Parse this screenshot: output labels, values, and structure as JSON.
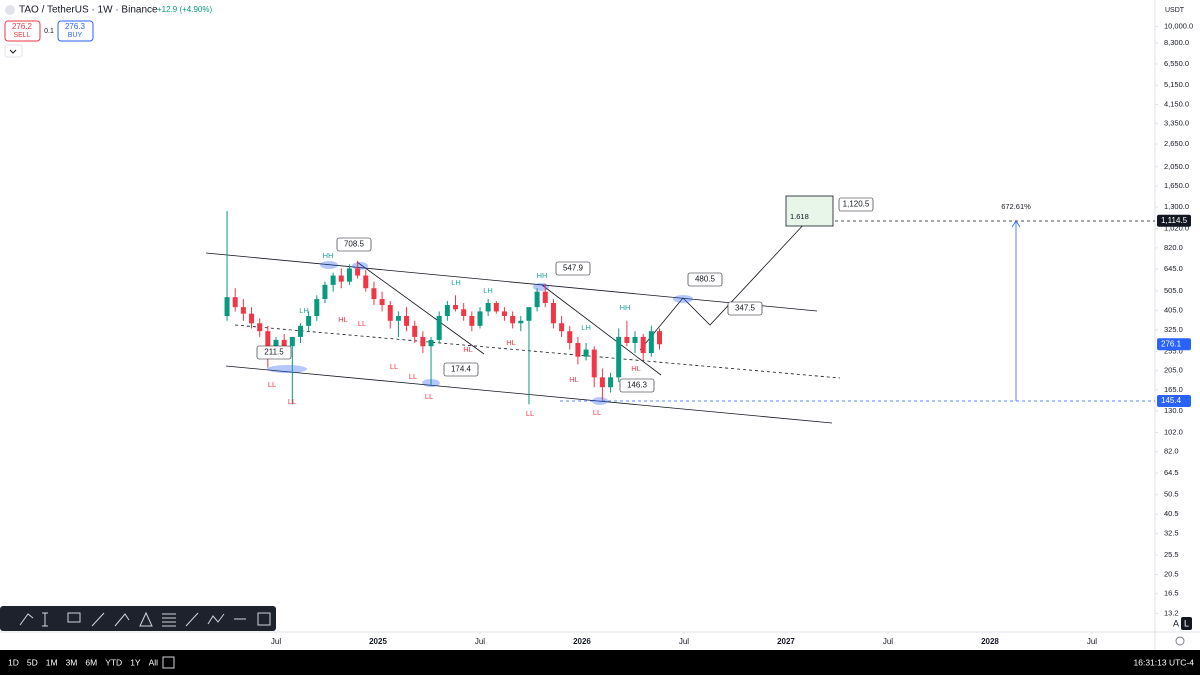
{
  "header": {
    "symbol": "TAO / TetherUS · 1W · Binance",
    "change": "+12.9 (+4.90%)",
    "sell_price": 276.2,
    "sell": "SELL",
    "spread": 0.1,
    "buy_price": 276.3,
    "buy": "BUY",
    "currency": "USDT"
  },
  "chart_data": {
    "type": "candlestick",
    "log_scale": true,
    "up_color": "#089981",
    "down_color": "#f23645",
    "xlim": [
      2023.147,
      2028.809
    ],
    "ylim": [
      10.7,
      13490
    ],
    "xticks": [
      {
        "value": 2024.5,
        "label": "Jul"
      },
      2025,
      {
        "value": 2025.5,
        "label": "Jul"
      },
      2026,
      {
        "value": 2026.5,
        "label": "Jul"
      },
      2027,
      {
        "value": 2027.5,
        "label": "Jul"
      },
      2028,
      {
        "value": 2028.5,
        "label": "Jul"
      }
    ],
    "yticks": [
      {
        "value": 10000,
        "label": "10,000.0"
      },
      {
        "value": 8300,
        "label": "8,300.0"
      },
      {
        "value": 6550,
        "label": "6,550.0"
      },
      {
        "value": 5150,
        "label": "5,150.0"
      },
      {
        "value": 4150,
        "label": "4,150.0"
      },
      {
        "value": 3350,
        "label": "3,350.0"
      },
      {
        "value": 2650,
        "label": "2,650.0"
      },
      {
        "value": 2050,
        "label": "2,050.0"
      },
      {
        "value": 1650,
        "label": "1,650.0"
      },
      {
        "value": 1300,
        "label": "1,300.0"
      },
      {
        "value": 1020,
        "label": "1,020.0"
      },
      {
        "value": 820,
        "label": "820.0"
      },
      {
        "value": 645,
        "label": "645.0"
      },
      {
        "value": 505,
        "label": "505.0"
      },
      {
        "value": 405,
        "label": "405.0"
      },
      {
        "value": 325,
        "label": "325.0"
      },
      {
        "value": 255,
        "label": "255.0"
      },
      {
        "value": 205,
        "label": "205.0"
      },
      {
        "value": 165,
        "label": "165.0"
      },
      {
        "value": 130,
        "label": "130.0"
      },
      {
        "value": 102,
        "label": "102.0"
      },
      {
        "value": 82,
        "label": "82.0"
      },
      64.5,
      50.5,
      40.5,
      32.5,
      25.5,
      20.5,
      16.5,
      13.2
    ],
    "x": [
      2024.26,
      2024.3,
      2024.34,
      2024.38,
      2024.42,
      2024.46,
      2024.5,
      2024.54,
      2024.58,
      2024.62,
      2024.66,
      2024.7,
      2024.74,
      2024.78,
      2024.82,
      2024.86,
      2024.9,
      2024.94,
      2024.98,
      2025.02,
      2025.06,
      2025.1,
      2025.14,
      2025.18,
      2025.22,
      2025.26,
      2025.3,
      2025.34,
      2025.38,
      2025.42,
      2025.46,
      2025.5,
      2025.54,
      2025.58,
      2025.62,
      2025.66,
      2025.7,
      2025.74,
      2025.78,
      2025.82,
      2025.86,
      2025.9,
      2025.94,
      2025.98,
      2026.02,
      2026.06,
      2026.1,
      2026.14,
      2026.18,
      2026.22,
      2026.26,
      2026.3,
      2026.34,
      2026.38
    ],
    "open": [
      380,
      470,
      420,
      390,
      350,
      320,
      260,
      290,
      270,
      300,
      340,
      380,
      460,
      540,
      600,
      560,
      650,
      600,
      520,
      460,
      430,
      360,
      380,
      340,
      300,
      270,
      290,
      380,
      430,
      410,
      380,
      340,
      400,
      440,
      400,
      380,
      350,
      360,
      420,
      500,
      440,
      350,
      320,
      280,
      240,
      260,
      190,
      170,
      190,
      300,
      280,
      300,
      250,
      320
    ],
    "high": [
      1245,
      520,
      460,
      420,
      370,
      340,
      300,
      310,
      290,
      350,
      400,
      480,
      560,
      620,
      650,
      680,
      708.5,
      640,
      560,
      500,
      450,
      400,
      420,
      360,
      320,
      300,
      400,
      450,
      480,
      440,
      400,
      420,
      460,
      450,
      420,
      400,
      380,
      380,
      520,
      547.9,
      460,
      380,
      340,
      300,
      280,
      270,
      210,
      200,
      330,
      360,
      320,
      310,
      340,
      330
    ],
    "low": [
      360,
      400,
      360,
      330,
      300,
      212,
      240,
      250,
      140,
      280,
      320,
      360,
      440,
      500,
      520,
      540,
      580,
      500,
      430,
      400,
      330,
      300,
      320,
      280,
      250,
      174.4,
      280,
      360,
      400,
      360,
      320,
      330,
      380,
      390,
      360,
      330,
      320,
      140,
      400,
      420,
      330,
      300,
      260,
      220,
      230,
      170,
      146.3,
      160,
      180,
      270,
      250,
      230,
      240,
      260
    ],
    "close": [
      470,
      420,
      390,
      350,
      320,
      260,
      290,
      270,
      300,
      340,
      380,
      460,
      540,
      600,
      560,
      650,
      600,
      520,
      460,
      430,
      360,
      380,
      340,
      300,
      270,
      290,
      380,
      430,
      410,
      380,
      340,
      400,
      440,
      400,
      380,
      350,
      360,
      420,
      500,
      440,
      350,
      320,
      280,
      240,
      260,
      190,
      170,
      190,
      300,
      280,
      300,
      250,
      320,
      276.1
    ],
    "price_labels": [
      {
        "value": 1114.5,
        "label": "1,114.5",
        "color": "#131722"
      },
      {
        "value": 276.1,
        "label": "276.1",
        "color": "#2962ff"
      },
      {
        "value": 145.4,
        "label": "145.4",
        "color": "#2962ff"
      }
    ],
    "callouts": [
      708.5,
      547.9,
      480.5,
      347.5,
      174.4,
      146.3,
      211.5,
      {
        "value": 1120.5,
        "label": "1,120.5"
      }
    ],
    "fib_level": 1.618,
    "measure": "672.61%",
    "pivots": [
      "LL",
      "LL",
      "LH",
      "HH",
      "HL",
      "LL",
      "LL",
      "LL",
      "LL",
      "HL",
      "LH",
      "LH",
      "HL",
      "LL",
      "HH",
      "LH",
      "HL",
      "LL",
      "HH",
      "HL"
    ]
  },
  "ranges": [
    "1D",
    "5D",
    "1M",
    "3M",
    "6M",
    "YTD",
    "1Y",
    "All"
  ],
  "time": "16:31:13 UTC-4",
  "scale_buttons": [
    "A",
    "L"
  ]
}
